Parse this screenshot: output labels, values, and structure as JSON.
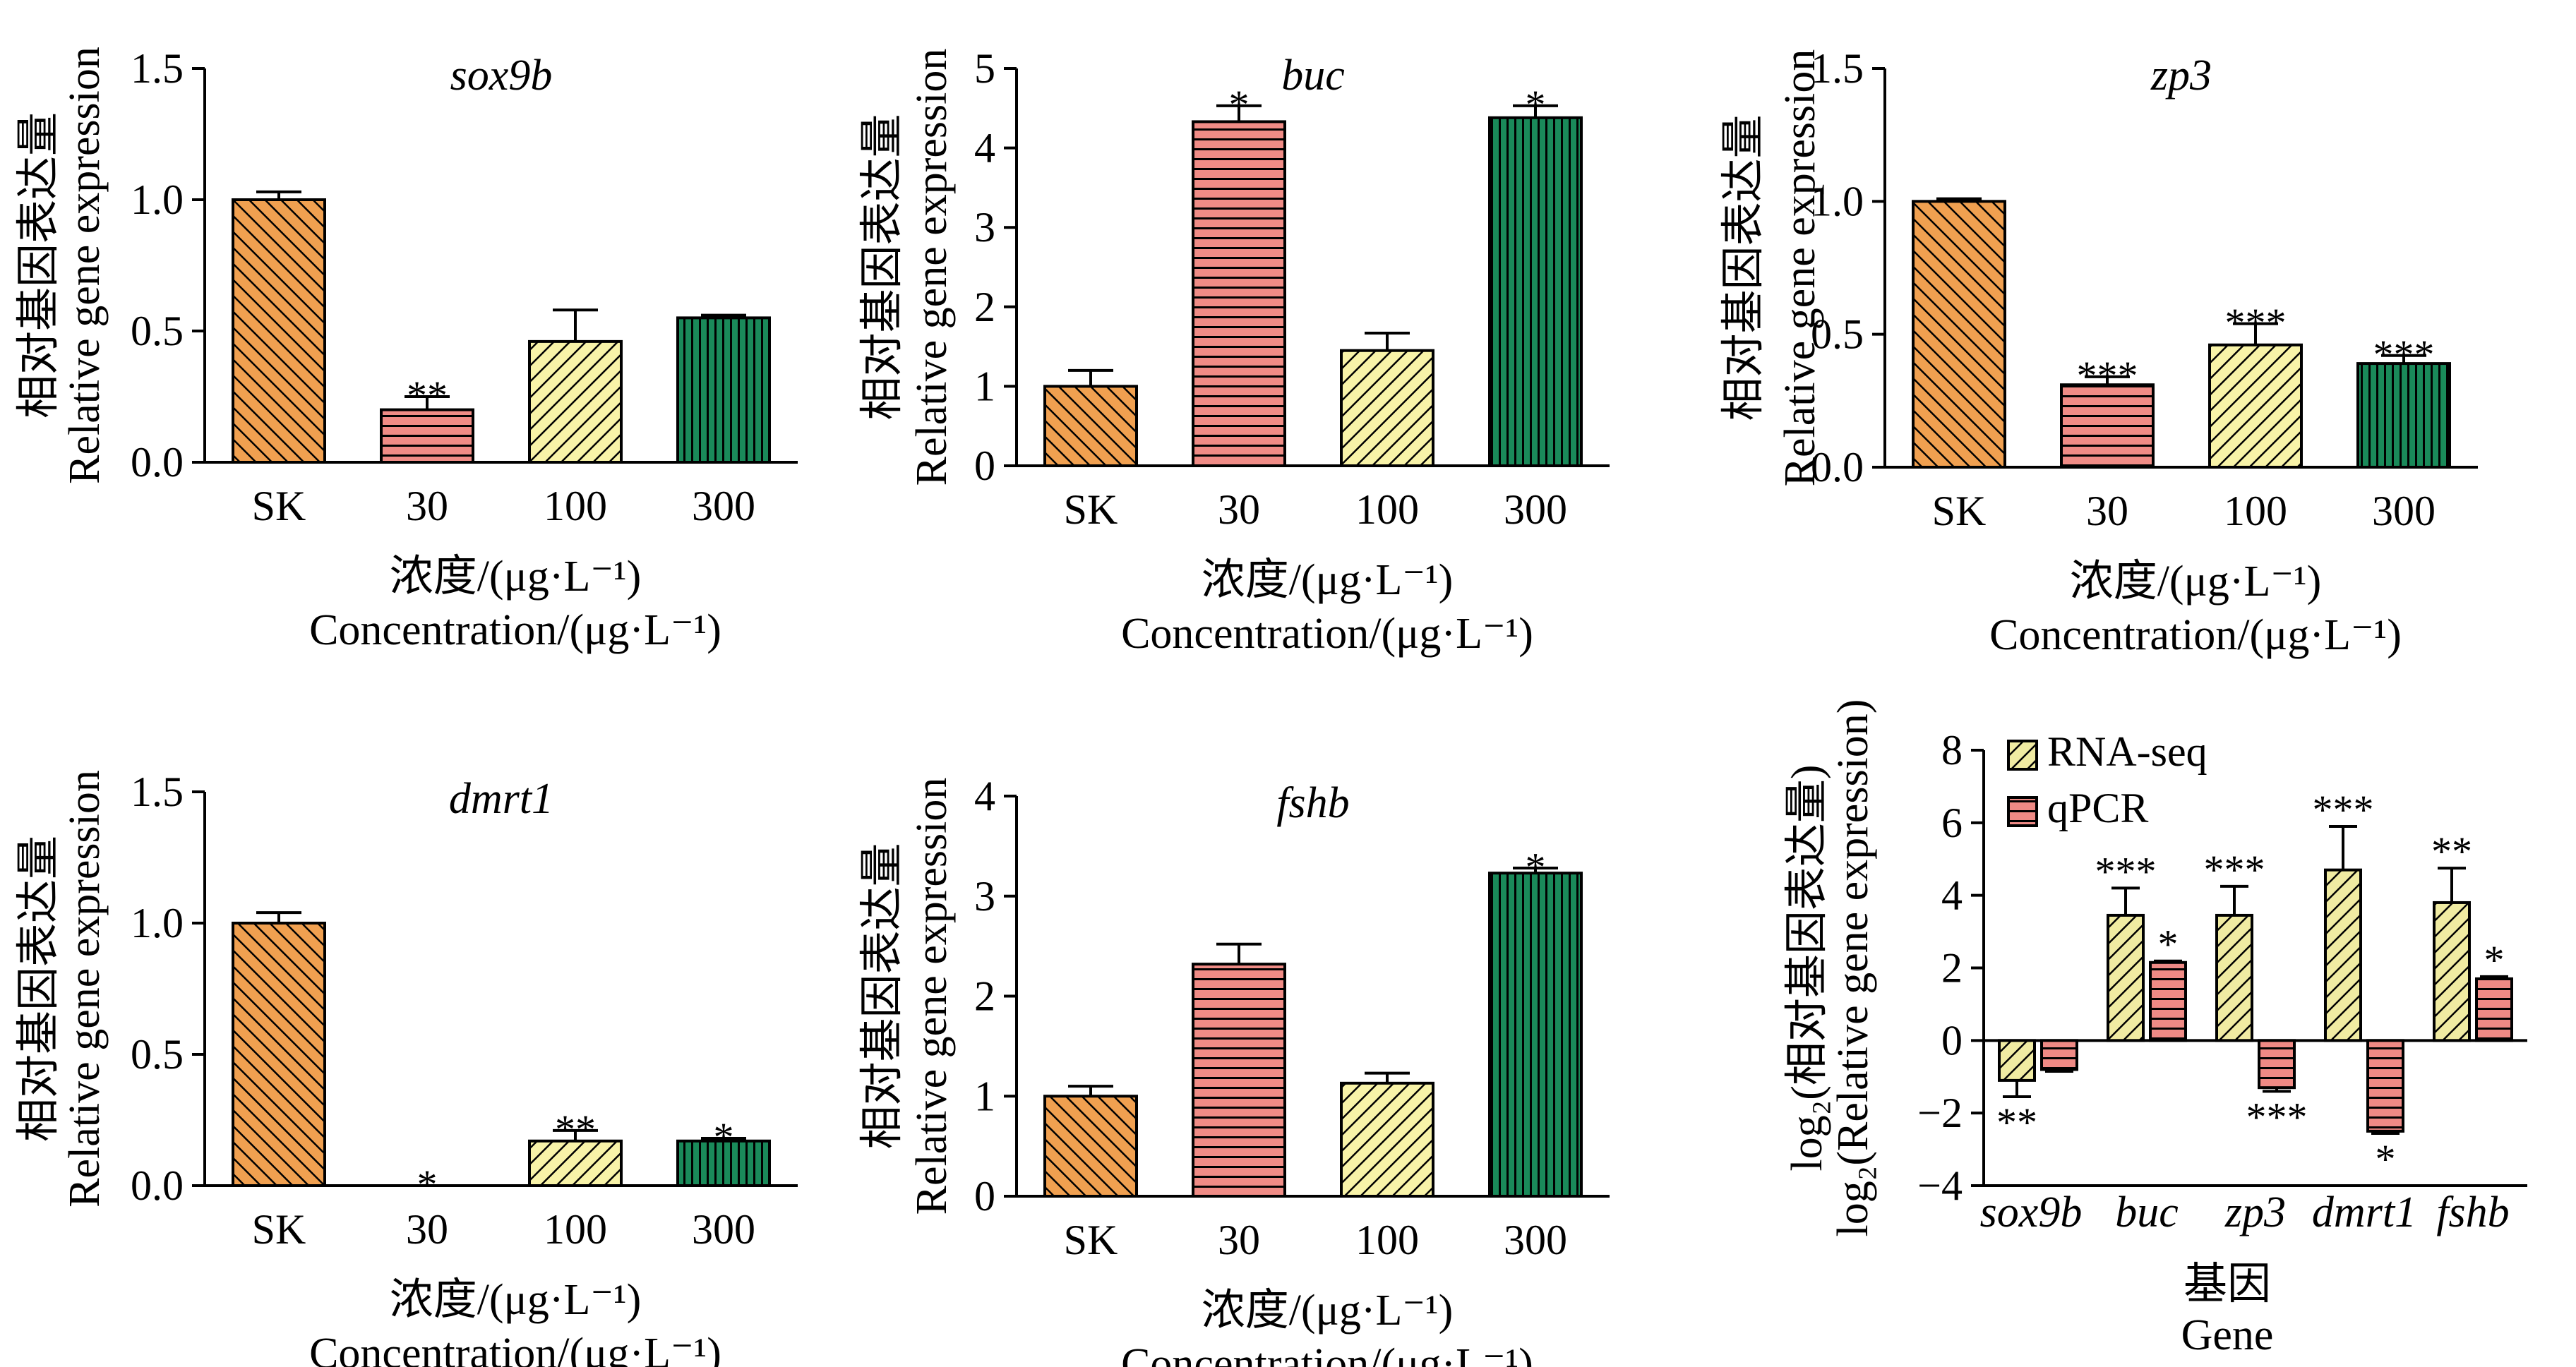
{
  "figure": {
    "categories": [
      "SK",
      "30",
      "100",
      "300"
    ],
    "ylabel_cn": "相对基因表达量",
    "ylabel_en": "Relative gene expression",
    "xlabel_cn": "浓度/(μg·L⁻¹)",
    "xlabel_en": "Concentration/(μg·L⁻¹)",
    "colors": {
      "SK": "#f0a050",
      "c30": "#f08c86",
      "c100": "#f8f3a8",
      "c300": "#1a8a5a",
      "rnaseq": "#f0eba2",
      "qpcr": "#ef8a85"
    }
  },
  "chart_data": [
    {
      "type": "bar",
      "title": "sox9b",
      "categories": [
        "SK",
        "30",
        "100",
        "300"
      ],
      "values": [
        1.0,
        0.2,
        0.46,
        0.55
      ],
      "errors": [
        0.03,
        0.05,
        0.12,
        0.01
      ],
      "significance": [
        "",
        "**",
        "",
        ""
      ],
      "ylim": [
        0,
        1.5
      ],
      "yticks": [
        "0.0",
        "0.5",
        "1.0",
        "1.5"
      ]
    },
    {
      "type": "bar",
      "title": "buc",
      "categories": [
        "SK",
        "30",
        "100",
        "300"
      ],
      "values": [
        1.0,
        4.33,
        1.45,
        4.38
      ],
      "errors": [
        0.2,
        0.2,
        0.22,
        0.15
      ],
      "significance": [
        "",
        "*",
        "",
        "*"
      ],
      "ylim": [
        0,
        5
      ],
      "yticks": [
        "0",
        "1",
        "2",
        "3",
        "4",
        "5"
      ]
    },
    {
      "type": "bar",
      "title": "zp3",
      "categories": [
        "SK",
        "30",
        "100",
        "300"
      ],
      "values": [
        1.0,
        0.31,
        0.46,
        0.39
      ],
      "errors": [
        0.01,
        0.03,
        0.08,
        0.03
      ],
      "significance": [
        "",
        "***",
        "***",
        "***"
      ],
      "ylim": [
        0,
        1.5
      ],
      "yticks": [
        "0.0",
        "0.5",
        "1.0",
        "1.5"
      ]
    },
    {
      "type": "bar",
      "title": "dmrt1",
      "categories": [
        "SK",
        "30",
        "100",
        "300"
      ],
      "values": [
        1.0,
        0.0,
        0.17,
        0.17
      ],
      "errors": [
        0.04,
        0.0,
        0.04,
        0.01
      ],
      "significance": [
        "",
        "*",
        "**",
        "*"
      ],
      "ylim": [
        0,
        1.5
      ],
      "yticks": [
        "0.0",
        "0.5",
        "1.0",
        "1.5"
      ]
    },
    {
      "type": "bar",
      "title": "fshb",
      "categories": [
        "SK",
        "30",
        "100",
        "300"
      ],
      "values": [
        1.0,
        2.32,
        1.13,
        3.23
      ],
      "errors": [
        0.1,
        0.2,
        0.1,
        0.05
      ],
      "significance": [
        "",
        "",
        "",
        "*"
      ],
      "ylim": [
        0,
        4
      ],
      "yticks": [
        "0",
        "1",
        "2",
        "3",
        "4"
      ]
    },
    {
      "type": "bar",
      "title": "",
      "categories": [
        "sox9b",
        "buc",
        "zp3",
        "dmrt1",
        "fshb"
      ],
      "series": [
        {
          "name": "RNA-seq",
          "values": [
            -1.1,
            3.45,
            3.45,
            4.7,
            3.8
          ],
          "errors": [
            0.45,
            0.75,
            0.8,
            1.2,
            0.95
          ],
          "significance": [
            "**",
            "***",
            "***",
            "***",
            "**"
          ]
        },
        {
          "name": "qPCR",
          "values": [
            -0.8,
            2.15,
            -1.3,
            -2.5,
            1.7
          ],
          "errors": [
            0.05,
            0.04,
            0.1,
            0.06,
            0.06
          ],
          "significance": [
            "",
            "*",
            "***",
            "*",
            "*"
          ]
        }
      ],
      "ylabel_line1": "log₂(相对基因表达量)",
      "ylabel_line2": "log₂(Relative gene expression)",
      "xlabel_cn": "基因",
      "xlabel_en": "Gene",
      "ylim": [
        -4,
        8
      ],
      "yticks": [
        "−4",
        "−2",
        "0",
        "2",
        "4",
        "6",
        "8"
      ],
      "legend_position": "top-left"
    }
  ]
}
